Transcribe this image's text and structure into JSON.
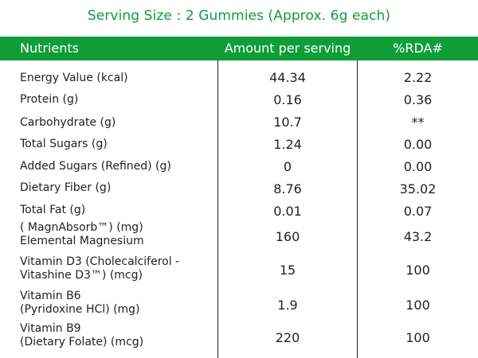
{
  "title": "Serving Size : 2 Gummies (Approx. 6g each)",
  "header": {
    "nutrients": "Nutrients",
    "amount": "Amount per serving",
    "rda": "%RDA#"
  },
  "rows": [
    {
      "name": "Energy Value (kcal)",
      "amount": "44.34",
      "rda": "2.22"
    },
    {
      "name": "Protein (g)",
      "amount": "0.16",
      "rda": "0.36"
    },
    {
      "name": "Carbohydrate (g)",
      "amount": "10.7",
      "rda": "**"
    },
    {
      "name": "Total Sugars (g)",
      "amount": "1.24",
      "rda": "0.00"
    },
    {
      "name": "Added Sugars (Refined) (g)",
      "amount": "0",
      "rda": "0.00"
    },
    {
      "name": "Dietary Fiber (g)",
      "amount": "8.76",
      "rda": "35.02"
    },
    {
      "name": "Total Fat (g)",
      "amount": "0.01",
      "rda": "0.07"
    },
    {
      "name_line1": "( MagnAbsorb™) (mg)",
      "name_line2": "Elemental Magnesium",
      "amount": "160",
      "rda": "43.2"
    },
    {
      "name_line1": "Vitamin D3 (Cholecalciferol -",
      "name_line2": "Vitashine D3™) (mcg)",
      "amount": "15",
      "rda": "100"
    },
    {
      "name_line1": "Vitamin B6",
      "name_line2": "(Pyridoxine HCl) (mg)",
      "amount": "1.9",
      "rda": "100"
    },
    {
      "name_line1": "Vitamin B9",
      "name_line2": "(Dietary Folate) (mcg)",
      "amount": "220",
      "rda": "100"
    }
  ]
}
